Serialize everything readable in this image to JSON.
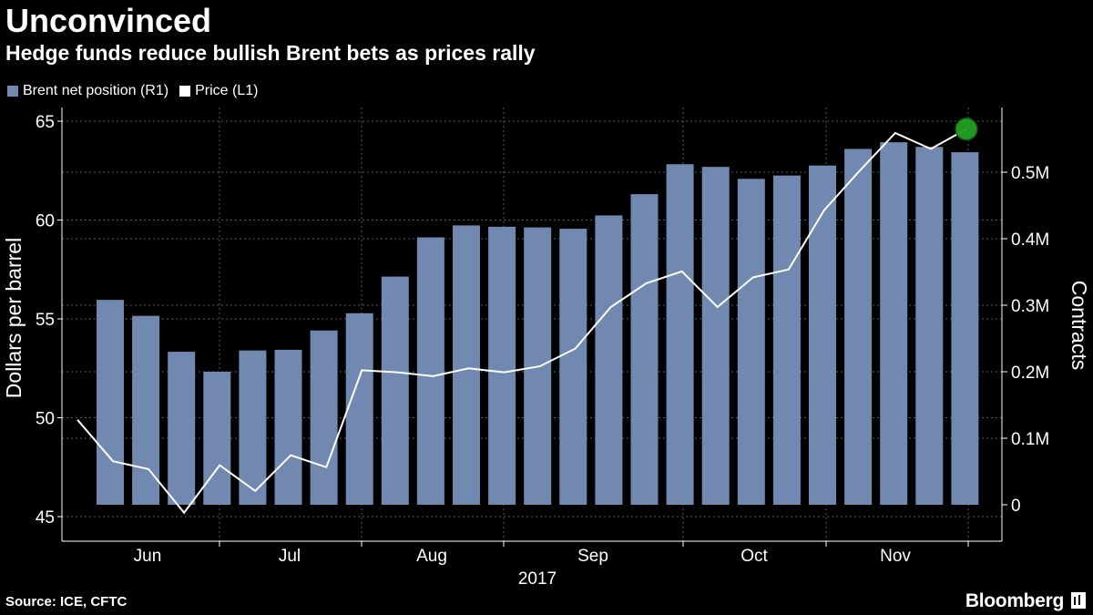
{
  "header": {
    "title": "Unconvinced",
    "subtitle": "Hedge funds reduce bullish Brent bets as prices rally"
  },
  "legend": [
    {
      "label": "Brent net position (R1)",
      "color": "#7189b0"
    },
    {
      "label": "Price (L1)",
      "color": "#ffffff"
    }
  ],
  "footer": {
    "source": "Source: ICE, CFTC",
    "brand": "Bloomberg"
  },
  "chart_data": {
    "type": "bar+line",
    "xlabel": "2017",
    "x_ticks": [
      "Jun",
      "Jul",
      "Aug",
      "Sep",
      "Oct",
      "Nov"
    ],
    "left_axis": {
      "label": "Dollars per barrel",
      "ylim": [
        45,
        65
      ],
      "ticks": [
        "45",
        "50",
        "55",
        "60",
        "65"
      ]
    },
    "right_axis": {
      "label": "Contracts",
      "ylim": [
        0,
        0.6
      ],
      "ticks": [
        "0",
        "0.1M",
        "0.2M",
        "0.3M",
        "0.4M",
        "0.5M"
      ]
    },
    "grid": true,
    "series": [
      {
        "name": "Brent net position (R1)",
        "type": "bar",
        "axis": "right",
        "color": "#7189b0",
        "values": [
          0.308,
          0.284,
          0.23,
          0.2,
          0.232,
          0.233,
          0.262,
          0.288,
          0.343,
          0.402,
          0.42,
          0.418,
          0.417,
          0.415,
          0.435,
          0.467,
          0.512,
          0.508,
          0.49,
          0.495,
          0.51,
          0.535,
          0.545,
          0.538,
          0.53
        ]
      },
      {
        "name": "Price (L1)",
        "type": "line",
        "axis": "left",
        "color": "#ffffff",
        "values": [
          49.9,
          47.8,
          47.4,
          45.2,
          47.6,
          46.3,
          48.1,
          47.5,
          52.4,
          52.3,
          52.1,
          52.5,
          52.3,
          52.6,
          53.5,
          55.6,
          56.8,
          57.4,
          55.6,
          57.1,
          57.5,
          60.5,
          62.5,
          64.4,
          63.6,
          64.6
        ],
        "last_point_marker": "#22a022"
      }
    ]
  }
}
